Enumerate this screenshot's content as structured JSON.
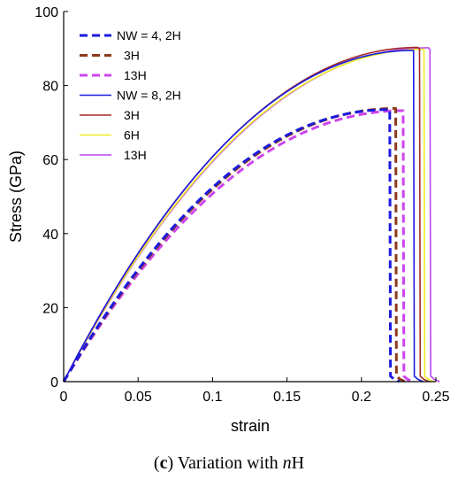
{
  "caption": {
    "open_paren": "(",
    "panel": "c",
    "close_paren": ")",
    "text": " Variation with ",
    "variable": "n",
    "suffix": "H"
  },
  "chart_data": {
    "type": "line",
    "xlabel": "strain",
    "ylabel": "Stress (GPa)",
    "xlim": [
      0,
      0.25
    ],
    "ylim": [
      0,
      100
    ],
    "xticks": [
      0,
      0.05,
      0.1,
      0.15,
      0.2,
      0.25
    ],
    "xtick_labels": [
      "0",
      "0.05",
      "0.1",
      "0.15",
      "0.2",
      "0.25"
    ],
    "yticks": [
      0,
      20,
      40,
      60,
      80,
      100
    ],
    "ytick_labels": [
      "0",
      "20",
      "40",
      "60",
      "80",
      "100"
    ],
    "grid": false,
    "legend_position": "top-left",
    "series": [
      {
        "name": "NW = 4, 2H",
        "color": "#1a1adf",
        "style": "dashed",
        "peak_strain": 0.219,
        "peak_stress": 73.5,
        "fracture_strain": 0.219
      },
      {
        "name": "3H",
        "color": "#8b3a1a",
        "style": "dashed",
        "peak_strain": 0.223,
        "peak_stress": 73.8,
        "fracture_strain": 0.223
      },
      {
        "name": "13H",
        "color": "#cc44ee",
        "style": "dashed",
        "peak_strain": 0.228,
        "peak_stress": 73.2,
        "fracture_strain": 0.228
      },
      {
        "name": "NW = 8, 2H",
        "color": "#1a1adf",
        "style": "solid",
        "peak_strain": 0.235,
        "peak_stress": 89.5,
        "fracture_strain": 0.235
      },
      {
        "name": "3H",
        "color": "#a52a2a",
        "style": "solid",
        "peak_strain": 0.238,
        "peak_stress": 90.3,
        "fracture_strain": 0.239
      },
      {
        "name": "6H",
        "color": "#eeee22",
        "style": "solid",
        "peak_strain": 0.242,
        "peak_stress": 89.8,
        "fracture_strain": 0.242
      },
      {
        "name": "13H",
        "color": "#bb44ee",
        "style": "solid",
        "peak_strain": 0.245,
        "peak_stress": 90.2,
        "fracture_strain": 0.246
      }
    ]
  }
}
